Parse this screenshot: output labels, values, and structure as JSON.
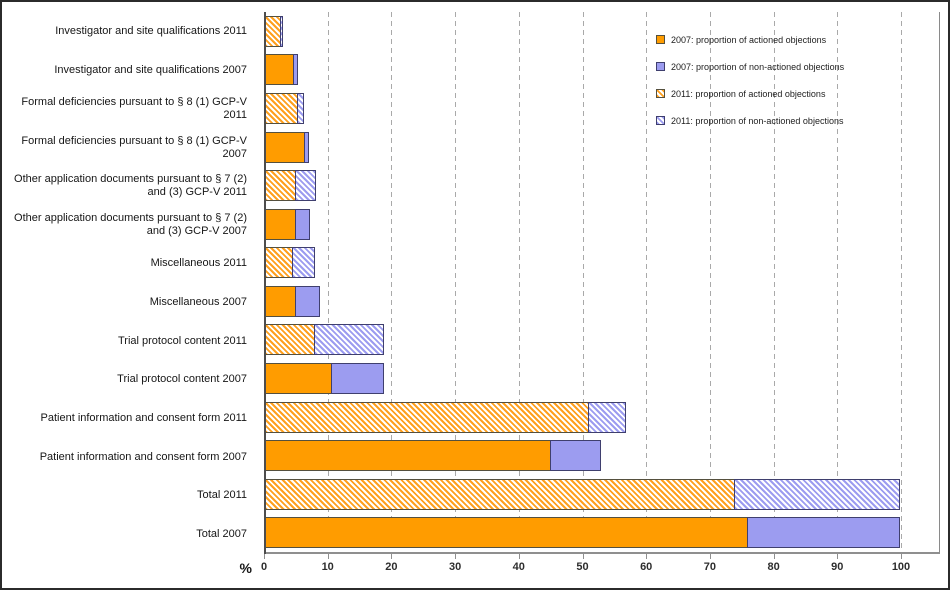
{
  "figure": {
    "xlabel": "%"
  },
  "axis": {
    "ticks": [
      "0",
      "10",
      "20",
      "30",
      "40",
      "50",
      "60",
      "70",
      "80",
      "90",
      "100"
    ],
    "min": 0,
    "max": 100
  },
  "legend": {
    "items": [
      {
        "label": "2007: proportion of actioned objections",
        "swatch": "solid-orange"
      },
      {
        "label": "2007: proportion of non-actioned objections",
        "swatch": "solid-purple"
      },
      {
        "label": "2011: proportion of actioned objections",
        "swatch": "hatch-orange"
      },
      {
        "label": "2011: proportion of non-actioned objections",
        "swatch": "hatch-blue"
      }
    ]
  },
  "colors": {
    "actioned_solid": "#FF9C00",
    "non_actioned_solid": "#9C9CF0",
    "hatch_background": "#FFFFFF",
    "gridline": "#A9A9A9",
    "axis_line": "#4D4D4D"
  },
  "chart_data": {
    "type": "bar",
    "orientation": "horizontal",
    "stacked": true,
    "xlabel": "%",
    "xlim": [
      0,
      100
    ],
    "grid": "vertical-dashed-every-10",
    "legend_position": "top-right",
    "series_names": [
      "proportion of actioned objections",
      "proportion of non-actioned objections"
    ],
    "rows": [
      {
        "category": "Investigator and site qualifications 2011",
        "year": 2011,
        "pattern": "hatched",
        "actioned": 2.7,
        "non_actioned": 0.5
      },
      {
        "category": "Investigator and site qualifications 2007",
        "year": 2007,
        "pattern": "solid",
        "actioned": 4.7,
        "non_actioned": 0.8
      },
      {
        "category": "Formal deficiencies pursuant to § 8 (1) GCP-V 2011",
        "year": 2011,
        "pattern": "hatched",
        "actioned": 5.3,
        "non_actioned": 1.2
      },
      {
        "category": "Formal deficiencies pursuant to § 8 (1) GCP-V 2007",
        "year": 2007,
        "pattern": "solid",
        "actioned": 6.5,
        "non_actioned": 0.7
      },
      {
        "category": "Other application documents pursuant to § 7 (2) and (3) GCP-V 2011",
        "year": 2011,
        "pattern": "hatched",
        "actioned": 5.0,
        "non_actioned": 3.3
      },
      {
        "category": "Other application documents pursuant to § 7 (2) and (3) GCP-V 2007",
        "year": 2007,
        "pattern": "solid",
        "actioned": 5.0,
        "non_actioned": 2.3
      },
      {
        "category": "Miscellaneous 2011",
        "year": 2011,
        "pattern": "hatched",
        "actioned": 4.6,
        "non_actioned": 3.6
      },
      {
        "category": "Miscellaneous 2007",
        "year": 2007,
        "pattern": "solid",
        "actioned": 5.0,
        "non_actioned": 4.0
      },
      {
        "category": "Trial protocol content 2011",
        "year": 2011,
        "pattern": "hatched",
        "actioned": 8.0,
        "non_actioned": 11.0
      },
      {
        "category": "Trial protocol content 2007",
        "year": 2007,
        "pattern": "solid",
        "actioned": 10.7,
        "non_actioned": 8.3
      },
      {
        "category": "Patient information and consent form 2011",
        "year": 2011,
        "pattern": "hatched",
        "actioned": 51.0,
        "non_actioned": 6.0
      },
      {
        "category": "Patient information and consent form 2007",
        "year": 2007,
        "pattern": "solid",
        "actioned": 45.0,
        "non_actioned": 8.0
      },
      {
        "category": "Total 2011",
        "year": 2011,
        "pattern": "hatched",
        "actioned": 74.0,
        "non_actioned": 26.0
      },
      {
        "category": "Total 2007",
        "year": 2007,
        "pattern": "solid",
        "actioned": 76.0,
        "non_actioned": 24.0
      }
    ]
  }
}
